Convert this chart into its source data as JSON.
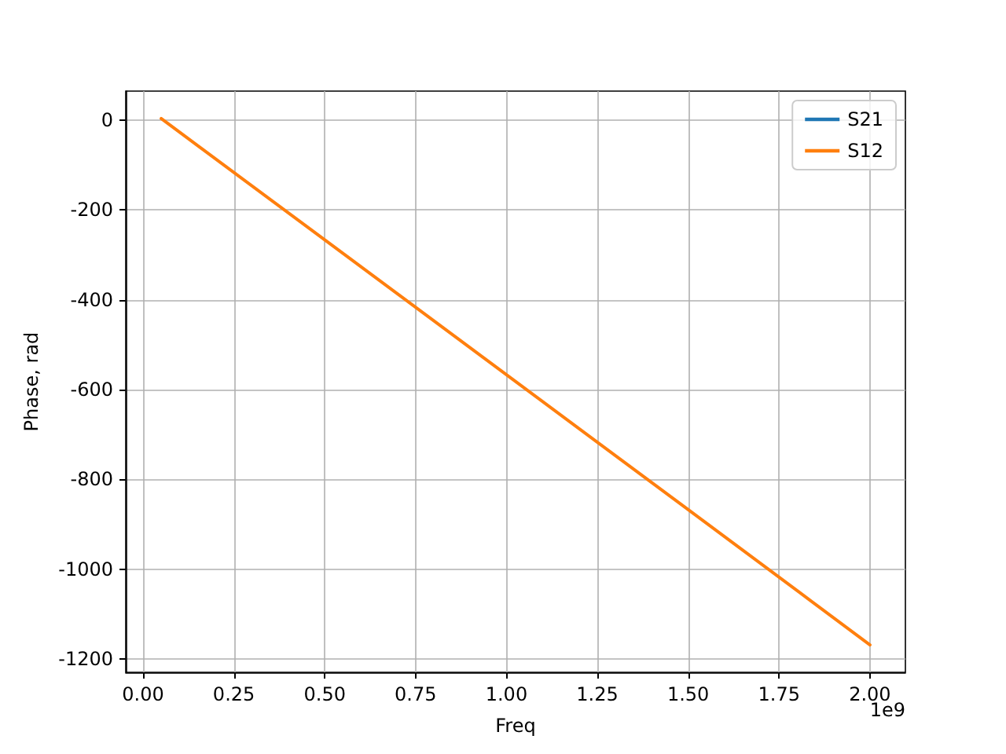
{
  "chart_data": {
    "type": "line",
    "xlabel": "Freq",
    "ylabel": "Phase, rad",
    "x": [
      0.05,
      0.5,
      1.0,
      1.5,
      2.0
    ],
    "series": [
      {
        "name": "S21",
        "color": "#1f77b4",
        "values": [
          null,
          null,
          null,
          null,
          null
        ]
      },
      {
        "name": "S12",
        "color": "#ff7f0e",
        "values": [
          3,
          -267,
          -567,
          -867,
          -1168
        ]
      }
    ],
    "xlim": [
      -0.0475,
      2.0975
    ],
    "xticks": [
      {
        "value": 0,
        "label": "0.00"
      },
      {
        "value": 0.25,
        "label": "0.25"
      },
      {
        "value": 0.5,
        "label": "0.50"
      },
      {
        "value": 0.75,
        "label": "0.75"
      },
      {
        "value": 1,
        "label": "1.00"
      },
      {
        "value": 1.25,
        "label": "1.25"
      },
      {
        "value": 1.5,
        "label": "1.50"
      },
      {
        "value": 1.75,
        "label": "1.75"
      },
      {
        "value": 2,
        "label": "2.00"
      }
    ],
    "ylim": [
      -1229,
      64
    ],
    "yticks": [
      -1200,
      -1000,
      -800,
      -600,
      -400,
      -200,
      0
    ],
    "annotations": [
      "1e9"
    ],
    "grid": true,
    "legend": "top right",
    "marker": "none",
    "line_style": "solid"
  }
}
